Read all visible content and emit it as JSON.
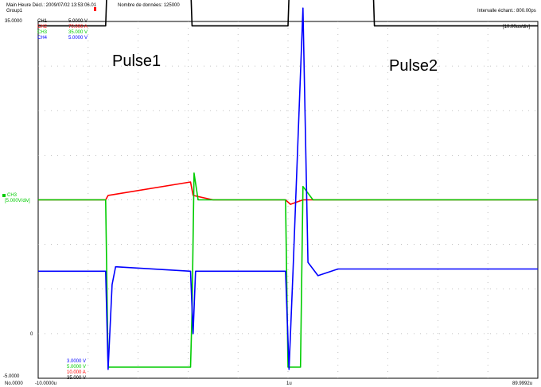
{
  "header": {
    "line1_left": "Main  Heure Décl.: 2009/07/02 13:53:06.01",
    "line1_count": "Nombre de données: 125000",
    "line2_left": "Group1",
    "sample_interval": "Intervalle échant.: 800.00ps",
    "timebase": "[10.00us/div]"
  },
  "channels": [
    {
      "name": "CH1",
      "scale": "5.0000 V",
      "color": "#000000"
    },
    {
      "name": "CH2",
      "scale": "70.000 A",
      "color": "#ff0000"
    },
    {
      "name": "CH3",
      "scale": "35.000 V",
      "color": "#00cc00"
    },
    {
      "name": "CH4",
      "scale": "5.0000 V",
      "color": "#0000ff"
    }
  ],
  "left_axis": {
    "top": "35.0000",
    "bottom": "-5.0000",
    "zero": "0",
    "active_channel": "CH3",
    "active_scale": "[5.000V/div]"
  },
  "bottom_offsets": [
    {
      "text": "3.0000 V",
      "color": "#0000ff"
    },
    {
      "text": "5.0000 V",
      "color": "#00cc00"
    },
    {
      "text": "10.000 A",
      "color": "#ff0000"
    },
    {
      "text": "35.000 V",
      "color": "#000000"
    }
  ],
  "footer": {
    "left": "No.0000",
    "start": "-10.0000u",
    "mid": "1u",
    "end": "89.9992u"
  },
  "annotations": {
    "pulse1": "Pulse1",
    "pulse2": "Pulse2"
  },
  "chart_data": {
    "type": "line",
    "title": "",
    "xlabel": "",
    "ylabel": "",
    "x_unit": "us",
    "xlim": [
      -10.0,
      89.9992
    ],
    "grid": true,
    "divisions": {
      "x": 10,
      "y": 8
    },
    "series": [
      {
        "name": "CH1",
        "color": "#000000",
        "points": [
          [
            -10,
            7.9
          ],
          [
            3.5,
            7.9
          ],
          [
            3.8,
            8.9
          ],
          [
            20.5,
            8.9
          ],
          [
            20.8,
            7.9
          ],
          [
            40,
            7.9
          ],
          [
            40.3,
            8.9
          ],
          [
            57,
            8.9
          ],
          [
            57.3,
            7.9
          ],
          [
            90,
            7.9
          ]
        ]
      },
      {
        "name": "CH2",
        "color": "#ff0000",
        "points": [
          [
            -10,
            4.0
          ],
          [
            3.5,
            4.0
          ],
          [
            4,
            4.1
          ],
          [
            20.5,
            4.4
          ],
          [
            21,
            4.1
          ],
          [
            25,
            4.0
          ],
          [
            39.5,
            4.0
          ],
          [
            40.5,
            3.9
          ],
          [
            43,
            4.0
          ],
          [
            90,
            4.0
          ]
        ]
      },
      {
        "name": "CH3",
        "color": "#00cc00",
        "points": [
          [
            -10,
            4.0
          ],
          [
            3.5,
            4.0
          ],
          [
            4,
            0.25
          ],
          [
            5,
            0.25
          ],
          [
            20.5,
            0.25
          ],
          [
            20.8,
            1.5
          ],
          [
            21.2,
            4.6
          ],
          [
            22,
            4.0
          ],
          [
            39.5,
            4.0
          ],
          [
            40,
            0.25
          ],
          [
            42.5,
            0.25
          ],
          [
            43,
            4.3
          ],
          [
            45,
            4.0
          ],
          [
            90,
            4.0
          ]
        ]
      },
      {
        "name": "CH4",
        "color": "#0000ff",
        "points": [
          [
            -10,
            2.4
          ],
          [
            3.5,
            2.4
          ],
          [
            4,
            0.2
          ],
          [
            4.8,
            2.1
          ],
          [
            5.5,
            2.5
          ],
          [
            20.5,
            2.4
          ],
          [
            21,
            1.0
          ],
          [
            21.5,
            2.4
          ],
          [
            39.5,
            2.4
          ],
          [
            40.2,
            0.2
          ],
          [
            41,
            2.4
          ],
          [
            43,
            8.3
          ],
          [
            44,
            2.6
          ],
          [
            46,
            2.3
          ],
          [
            50,
            2.45
          ],
          [
            90,
            2.45
          ]
        ]
      }
    ]
  }
}
